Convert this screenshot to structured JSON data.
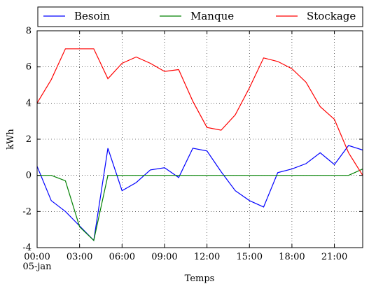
{
  "chart_data": {
    "type": "line",
    "xlabel": "Temps",
    "ylabel": "kWh",
    "ylim": [
      -4,
      8
    ],
    "yticks": [
      -4,
      -2,
      0,
      2,
      4,
      6,
      8
    ],
    "xlim": [
      0,
      23
    ],
    "xticks": [
      {
        "hour": 0,
        "label": "00:00",
        "sublabel": "05-jan"
      },
      {
        "hour": 3,
        "label": "03:00"
      },
      {
        "hour": 6,
        "label": "06:00"
      },
      {
        "hour": 9,
        "label": "09:00"
      },
      {
        "hour": 12,
        "label": "12:00"
      },
      {
        "hour": 15,
        "label": "15:00"
      },
      {
        "hour": 18,
        "label": "18:00"
      },
      {
        "hour": 21,
        "label": "21:00"
      }
    ],
    "grid": true,
    "legend_position": "top",
    "x": [
      0,
      1,
      2,
      3,
      4,
      5,
      6,
      7,
      8,
      9,
      10,
      11,
      12,
      13,
      14,
      15,
      16,
      17,
      18,
      19,
      20,
      21,
      22,
      23
    ],
    "series": [
      {
        "name": "Besoin",
        "color": "#0000ff",
        "values": [
          0.5,
          -1.4,
          -2.0,
          -2.8,
          -3.6,
          1.5,
          -0.85,
          -0.4,
          0.3,
          0.42,
          -0.12,
          1.5,
          1.35,
          0.2,
          -0.85,
          -1.4,
          -1.75,
          0.15,
          0.35,
          0.65,
          1.25,
          0.6,
          1.65,
          1.4
        ]
      },
      {
        "name": "Manque",
        "color": "#008000",
        "values": [
          0,
          0,
          -0.3,
          -2.85,
          -3.6,
          0,
          0,
          0,
          0,
          0,
          0,
          0,
          0,
          0,
          0,
          0,
          0,
          0,
          0,
          0,
          0,
          0,
          0,
          0.35
        ]
      },
      {
        "name": "Stockage",
        "color": "#ff0000",
        "values": [
          4.0,
          5.3,
          7.0,
          7.0,
          7.0,
          5.35,
          6.2,
          6.55,
          6.2,
          5.75,
          5.85,
          4.1,
          2.65,
          2.5,
          3.35,
          4.85,
          6.5,
          6.3,
          5.9,
          5.15,
          3.8,
          3.1,
          1.25,
          0.0
        ]
      }
    ]
  }
}
